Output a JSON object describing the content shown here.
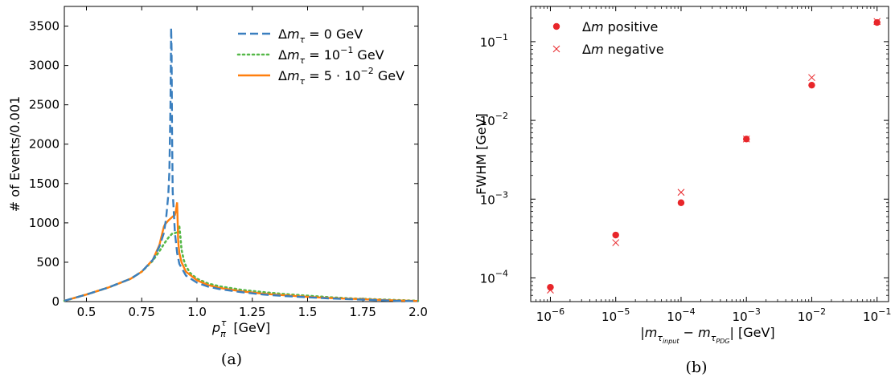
{
  "chart_data": [
    {
      "type": "line",
      "panel": "(a)",
      "xlabel": "p_π^τ [GeV]",
      "ylabel": "# of Events/0.001",
      "xlim": [
        0.4,
        2.0
      ],
      "ylim": [
        0,
        3750
      ],
      "xticks": [
        0.5,
        0.75,
        1.0,
        1.25,
        1.5,
        1.75,
        2.0
      ],
      "xtick_labels": [
        "0.5",
        "0.75",
        "1.0",
        "1.25",
        "1.5",
        "1.75",
        "2.0"
      ],
      "yticks": [
        0,
        500,
        1000,
        1500,
        2000,
        2500,
        3000,
        3500
      ],
      "ytick_labels": [
        "0",
        "500",
        "1000",
        "1500",
        "2000",
        "2500",
        "3000",
        "3500"
      ],
      "legend_placement": "top-right",
      "series": [
        {
          "name": "Δm_τ = 0 GeV",
          "color": "#3a7fbf",
          "style": "dashed",
          "x": [
            0.4,
            0.5,
            0.6,
            0.7,
            0.75,
            0.8,
            0.83,
            0.85,
            0.86,
            0.87,
            0.875,
            0.88,
            0.883,
            0.885,
            0.887,
            0.89,
            0.9,
            0.91,
            0.92,
            0.95,
            1.0,
            1.05,
            1.1,
            1.2,
            1.3,
            1.4,
            1.5,
            1.6,
            1.7,
            1.8,
            1.9,
            2.0
          ],
          "y": [
            10,
            90,
            180,
            290,
            380,
            530,
            700,
            870,
            1050,
            1350,
            1650,
            2500,
            3480,
            3200,
            2200,
            1400,
            880,
            620,
            480,
            330,
            240,
            190,
            160,
            120,
            90,
            70,
            55,
            40,
            30,
            20,
            10,
            5
          ]
        },
        {
          "name": "Δm_τ = 10^-1 GeV",
          "color": "#55b848",
          "style": "dotted",
          "x": [
            0.4,
            0.5,
            0.6,
            0.7,
            0.75,
            0.8,
            0.83,
            0.85,
            0.87,
            0.89,
            0.9,
            0.91,
            0.92,
            0.925,
            0.93,
            0.94,
            0.95,
            0.97,
            1.0,
            1.05,
            1.1,
            1.2,
            1.3,
            1.4,
            1.5,
            1.6,
            1.7,
            1.8,
            1.9,
            2.0
          ],
          "y": [
            10,
            90,
            180,
            290,
            380,
            520,
            640,
            730,
            810,
            870,
            870,
            880,
            960,
            820,
            660,
            530,
            450,
            360,
            290,
            230,
            195,
            150,
            120,
            95,
            75,
            55,
            40,
            30,
            20,
            10
          ]
        },
        {
          "name": "Δm_τ = 5·10^-2 GeV",
          "color": "#ff7f0e",
          "style": "solid",
          "x": [
            0.4,
            0.5,
            0.6,
            0.7,
            0.75,
            0.8,
            0.83,
            0.85,
            0.855,
            0.87,
            0.89,
            0.9,
            0.905,
            0.91,
            0.915,
            0.92,
            0.93,
            0.95,
            1.0,
            1.05,
            1.1,
            1.2,
            1.3,
            1.4,
            1.5,
            1.6,
            1.7,
            1.8,
            1.9,
            2.0
          ],
          "y": [
            10,
            90,
            180,
            290,
            380,
            530,
            720,
            950,
            980,
            1030,
            1080,
            1100,
            1160,
            1260,
            760,
            620,
            500,
            380,
            270,
            210,
            175,
            130,
            100,
            80,
            60,
            45,
            35,
            25,
            15,
            8
          ]
        }
      ]
    },
    {
      "type": "scatter",
      "panel": "(b)",
      "xlabel": "|m_τinput − m_τPDG| [GeV]",
      "ylabel": "FWHM [GeV]",
      "xscale": "log",
      "yscale": "log",
      "xlim": [
        5e-07,
        0.15
      ],
      "ylim": [
        5e-05,
        0.28
      ],
      "xticks": [
        1e-06,
        1e-05,
        0.0001,
        0.001,
        0.01,
        0.1
      ],
      "xtick_labels": [
        [
          "10",
          "−6"
        ],
        [
          "10",
          "−5"
        ],
        [
          "10",
          "−4"
        ],
        [
          "10",
          "−3"
        ],
        [
          "10",
          "−2"
        ],
        [
          "10",
          "−1"
        ]
      ],
      "yticks": [
        0.0001,
        0.001,
        0.01,
        0.1
      ],
      "ytick_labels": [
        [
          "10",
          "−4"
        ],
        [
          "10",
          "−3"
        ],
        [
          "10",
          "−2"
        ],
        [
          "10",
          "−1"
        ]
      ],
      "legend_placement": "top-left",
      "series": [
        {
          "name": "Δm positive",
          "color": "#e8262a",
          "marker": "circle",
          "x": [
            1e-06,
            1e-05,
            0.0001,
            0.001,
            0.01,
            0.1
          ],
          "y": [
            7.6e-05,
            0.00035,
            0.0009,
            0.0058,
            0.028,
            0.175
          ]
        },
        {
          "name": "Δm negative",
          "color": "#e8262a",
          "marker": "x",
          "x": [
            1e-06,
            1e-05,
            0.0001,
            0.001,
            0.01,
            0.1
          ],
          "y": [
            7e-05,
            0.00028,
            0.00122,
            0.0058,
            0.035,
            0.18
          ]
        }
      ]
    }
  ],
  "captions": {
    "a": "(a)",
    "b": "(b)"
  }
}
